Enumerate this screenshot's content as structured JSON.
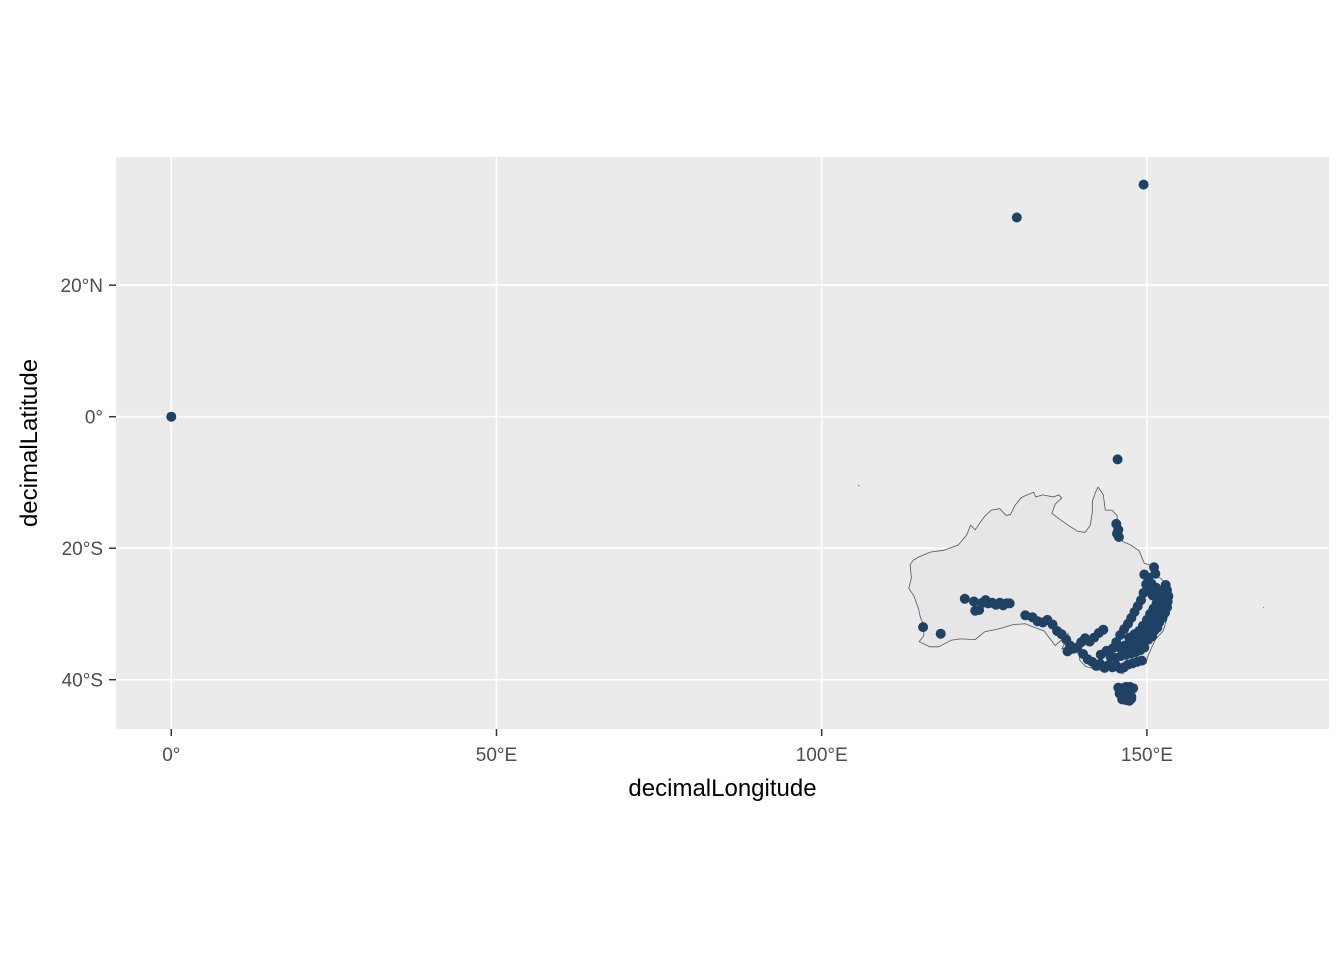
{
  "chart_data": {
    "type": "scatter",
    "title": "",
    "xlabel": "decimalLongitude",
    "ylabel": "decimalLatitude",
    "xlim": [
      -8.5,
      178
    ],
    "ylim": [
      -47.5,
      39.5
    ],
    "x_ticks": [
      {
        "value": 0,
        "label": "0°"
      },
      {
        "value": 50,
        "label": "50°E"
      },
      {
        "value": 100,
        "label": "100°E"
      },
      {
        "value": 150,
        "label": "150°E"
      }
    ],
    "y_ticks": [
      {
        "value": 20,
        "label": "20°N"
      },
      {
        "value": 0,
        "label": "0°"
      },
      {
        "value": -20,
        "label": "20°S"
      },
      {
        "value": -40,
        "label": "40°S"
      }
    ],
    "grid": true,
    "panel_background": "#ebebeb",
    "grid_color": "#ffffff",
    "point_color": "#1f4264",
    "land_fill": "#e6e6e6",
    "land_stroke": "#555555",
    "basemap": "Australia outline",
    "points": [
      [
        0,
        0
      ],
      [
        130,
        30.3
      ],
      [
        149.5,
        35.3
      ],
      [
        145.5,
        -6.5
      ],
      [
        145.3,
        -16.3
      ],
      [
        145.6,
        -17.2
      ],
      [
        145.4,
        -17.8
      ],
      [
        145.7,
        -18.3
      ],
      [
        115.6,
        -32
      ],
      [
        118.3,
        -33
      ],
      [
        122,
        -27.7
      ],
      [
        123.4,
        -28.1
      ],
      [
        123.6,
        -29.5
      ],
      [
        124.2,
        -29.4
      ],
      [
        124.7,
        -28.3
      ],
      [
        125.2,
        -27.9
      ],
      [
        125.6,
        -28.4
      ],
      [
        126.2,
        -28.3
      ],
      [
        126.8,
        -28.6
      ],
      [
        127.4,
        -28.3
      ],
      [
        127.9,
        -28.7
      ],
      [
        128.4,
        -28.4
      ],
      [
        128.9,
        -28.4
      ],
      [
        131.3,
        -30.2
      ],
      [
        132.4,
        -30.5
      ],
      [
        133.2,
        -31.1
      ],
      [
        134,
        -31.3
      ],
      [
        134.7,
        -30.9
      ],
      [
        135.5,
        -31.6
      ],
      [
        136.2,
        -32.6
      ],
      [
        136.9,
        -33.1
      ],
      [
        137.6,
        -33.9
      ],
      [
        138.2,
        -34.8
      ],
      [
        138.6,
        -35.3
      ],
      [
        137.8,
        -35.7
      ],
      [
        139.3,
        -35.1
      ],
      [
        139.9,
        -34.3
      ],
      [
        140.5,
        -33.7
      ],
      [
        141.2,
        -34.2
      ],
      [
        141.9,
        -33.6
      ],
      [
        142.6,
        -32.9
      ],
      [
        143.3,
        -32.4
      ],
      [
        140.2,
        -36.1
      ],
      [
        140.9,
        -36.9
      ],
      [
        141.6,
        -37.3
      ],
      [
        142.2,
        -37.9
      ],
      [
        142.8,
        -37.6
      ],
      [
        143.5,
        -38.2
      ],
      [
        144.1,
        -37.8
      ],
      [
        144.7,
        -38.1
      ],
      [
        145.3,
        -37.9
      ],
      [
        145.9,
        -38.3
      ],
      [
        146.5,
        -38.1
      ],
      [
        147.1,
        -37.7
      ],
      [
        147.8,
        -37.5
      ],
      [
        148.5,
        -37.3
      ],
      [
        149.2,
        -37.1
      ],
      [
        144.4,
        -36.5
      ],
      [
        145.2,
        -36.7
      ],
      [
        146,
        -36.4
      ],
      [
        146.8,
        -36.2
      ],
      [
        147.6,
        -36
      ],
      [
        148.3,
        -35.8
      ],
      [
        149,
        -35.5
      ],
      [
        149.6,
        -35.1
      ],
      [
        143.8,
        -35.6
      ],
      [
        142.9,
        -36.2
      ],
      [
        145.6,
        -41.2
      ],
      [
        146.2,
        -41.3
      ],
      [
        146.8,
        -41.1
      ],
      [
        147.4,
        -41.1
      ],
      [
        147.9,
        -41.3
      ],
      [
        145.8,
        -42.1
      ],
      [
        146.4,
        -42.3
      ],
      [
        147,
        -42.4
      ],
      [
        147.6,
        -42.6
      ],
      [
        146.2,
        -43
      ],
      [
        146.8,
        -43.1
      ],
      [
        147.3,
        -43.2
      ],
      [
        147.6,
        -42.9
      ],
      [
        148.2,
        -34.8
      ],
      [
        148.9,
        -34.6
      ],
      [
        149.6,
        -34.2
      ],
      [
        150.2,
        -33.9
      ],
      [
        150.8,
        -33.4
      ],
      [
        151.1,
        -32.6
      ],
      [
        151.6,
        -32.1
      ],
      [
        151.9,
        -31.3
      ],
      [
        152.4,
        -30.6
      ],
      [
        152.8,
        -29.8
      ],
      [
        153.1,
        -29
      ],
      [
        153.2,
        -28.1
      ],
      [
        153.3,
        -27.3
      ],
      [
        153.1,
        -26.4
      ],
      [
        152.9,
        -25.6
      ],
      [
        149.6,
        -33.2
      ],
      [
        150.1,
        -32.4
      ],
      [
        150.6,
        -31.6
      ],
      [
        151.1,
        -30.8
      ],
      [
        151.6,
        -30
      ],
      [
        152.1,
        -29.2
      ],
      [
        152.5,
        -28.4
      ],
      [
        152.4,
        -27.4
      ],
      [
        152,
        -26.5
      ],
      [
        151.4,
        -26
      ],
      [
        150.7,
        -25.4
      ],
      [
        150.2,
        -24.5
      ],
      [
        149.6,
        -24
      ],
      [
        151.3,
        -23.9
      ],
      [
        151.1,
        -22.9
      ],
      [
        147.3,
        -33.6
      ],
      [
        148.1,
        -33.1
      ],
      [
        148.8,
        -32.6
      ],
      [
        149.4,
        -31.8
      ],
      [
        150,
        -30.9
      ],
      [
        150.5,
        -30
      ],
      [
        151,
        -29.2
      ],
      [
        151.5,
        -28.4
      ],
      [
        151.9,
        -27.6
      ],
      [
        150.9,
        -27.2
      ],
      [
        150.3,
        -26.4
      ],
      [
        149.9,
        -25.5
      ],
      [
        149.5,
        -26.8
      ],
      [
        149.1,
        -27.9
      ],
      [
        148.6,
        -28.8
      ],
      [
        148.1,
        -29.7
      ],
      [
        147.6,
        -30.6
      ],
      [
        147.1,
        -31.5
      ],
      [
        146.5,
        -32.3
      ],
      [
        145.9,
        -33.2
      ],
      [
        145.3,
        -34.3
      ],
      [
        145.9,
        -35.1
      ],
      [
        146.6,
        -34.8
      ],
      [
        147.2,
        -35.3
      ],
      [
        147.9,
        -34.6
      ],
      [
        148.6,
        -33.9
      ],
      [
        149.1,
        -33.5
      ],
      [
        144.8,
        -35.2
      ]
    ]
  }
}
